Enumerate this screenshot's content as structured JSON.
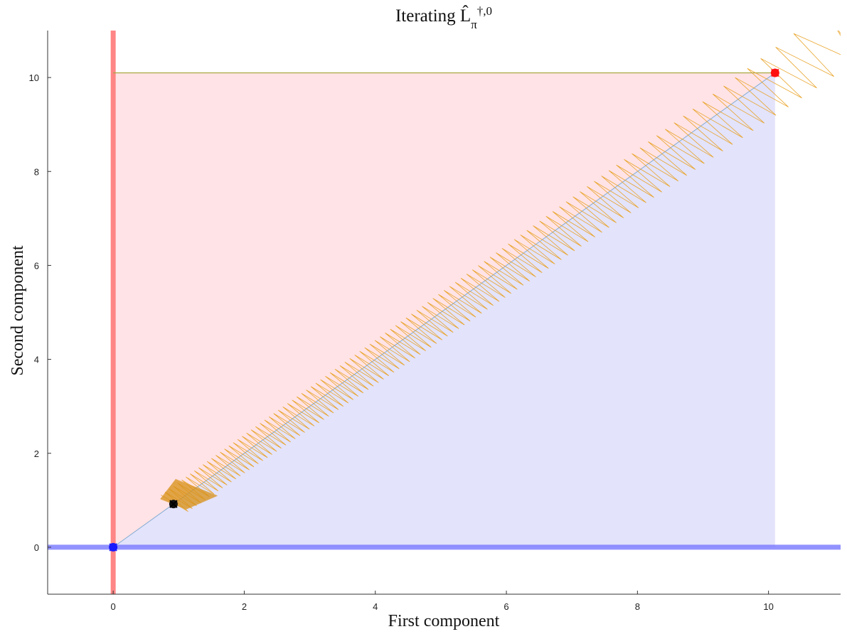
{
  "chart_data": {
    "type": "line",
    "title": "Iterating L̂π†,0",
    "title_parts": {
      "prefix": "Iterating ",
      "base": "L̂",
      "subscript": "π",
      "superscript": "†,0"
    },
    "xlabel": "First component",
    "ylabel": "Second component",
    "xlim": [
      -1,
      11.1
    ],
    "ylim": [
      -1,
      11
    ],
    "xticks": [
      0,
      2,
      4,
      6,
      8,
      10
    ],
    "yticks": [
      0,
      2,
      4,
      6,
      8,
      10
    ],
    "xtick_labels": [
      "0",
      "2",
      "4",
      "6",
      "8",
      "10"
    ],
    "ytick_labels": [
      "0",
      "2",
      "4",
      "6",
      "8",
      "10"
    ],
    "grid": false,
    "legend": "none",
    "regions": [
      {
        "label": "upper-left",
        "color": "#ffe3e6",
        "polygon": [
          [
            0,
            0
          ],
          [
            0,
            10.1
          ],
          [
            10.1,
            10.1
          ]
        ]
      },
      {
        "label": "lower-right",
        "color": "#e3e3fb",
        "polygon": [
          [
            0,
            0
          ],
          [
            10.1,
            10.1
          ],
          [
            10.1,
            0
          ]
        ]
      }
    ],
    "lines": [
      {
        "label": "vertical-band",
        "color": "#ff8080",
        "points": [
          [
            0,
            -1
          ],
          [
            0,
            11
          ]
        ]
      },
      {
        "label": "horizontal-band",
        "color": "#7777ff",
        "points": [
          [
            -1,
            0
          ],
          [
            11.1,
            0
          ]
        ]
      },
      {
        "label": "top-edge",
        "color": "#a6a640",
        "points": [
          [
            0,
            10.1
          ],
          [
            10.1,
            10.1
          ]
        ]
      },
      {
        "label": "diagonal",
        "color": "#7aa7cf",
        "points": [
          [
            0,
            0
          ],
          [
            10.1,
            10.1
          ]
        ]
      }
    ],
    "iteration_path": {
      "color": "#e8a020",
      "start": [
        11.1,
        10.5
      ],
      "end": [
        0.92,
        0.92
      ],
      "width_start": 0.7,
      "width_end": 0.33,
      "diagonal_offset_start": 1.1,
      "turns": 210
    },
    "markers": [
      {
        "label": "origin-point",
        "x": 0,
        "y": 0,
        "color": "#1a1aff"
      },
      {
        "label": "fixed-point-red",
        "x": 10.1,
        "y": 10.1,
        "color": "#ff1010"
      },
      {
        "label": "fixed-point-black",
        "x": 0.92,
        "y": 0.92,
        "color": "#111111"
      }
    ]
  }
}
